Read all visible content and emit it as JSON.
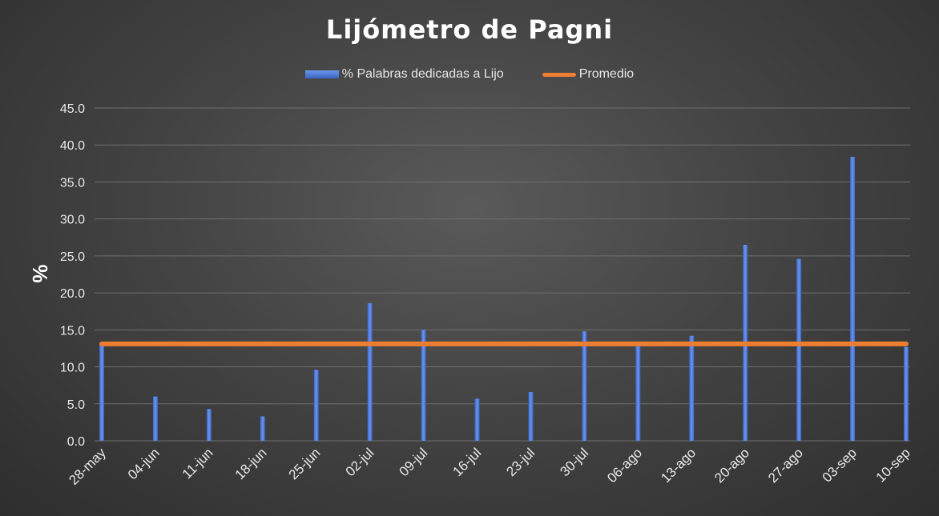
{
  "chart_data": {
    "type": "bar",
    "title": "Lijómetro de Pagni",
    "xlabel": "",
    "ylabel": "%",
    "ylim": [
      0,
      45
    ],
    "yticks": [
      "0.0",
      "5.0",
      "10.0",
      "15.0",
      "20.0",
      "25.0",
      "30.0",
      "35.0",
      "40.0",
      "45.0"
    ],
    "grid": true,
    "legend_position": "top",
    "categories": [
      "28-may",
      "04-jun",
      "11-jun",
      "18-jun",
      "25-jun",
      "02-jul",
      "09-jul",
      "16-jul",
      "23-jul",
      "30-jul",
      "06-ago",
      "13-ago",
      "20-ago",
      "27-ago",
      "03-sep",
      "10-sep"
    ],
    "series": [
      {
        "name": "% Palabras dedicadas a Lijo",
        "type": "bar",
        "color": "#4472c4",
        "values": [
          13.0,
          6.0,
          4.3,
          3.3,
          9.6,
          18.6,
          15.0,
          5.7,
          6.6,
          14.8,
          13.0,
          14.2,
          26.5,
          24.6,
          38.4,
          12.7
        ]
      },
      {
        "name": "Promedio",
        "type": "line",
        "color": "#ed7d31",
        "values": [
          13.1,
          13.1,
          13.1,
          13.1,
          13.1,
          13.1,
          13.1,
          13.1,
          13.1,
          13.1,
          13.1,
          13.1,
          13.1,
          13.1,
          13.1,
          13.1
        ]
      }
    ]
  }
}
